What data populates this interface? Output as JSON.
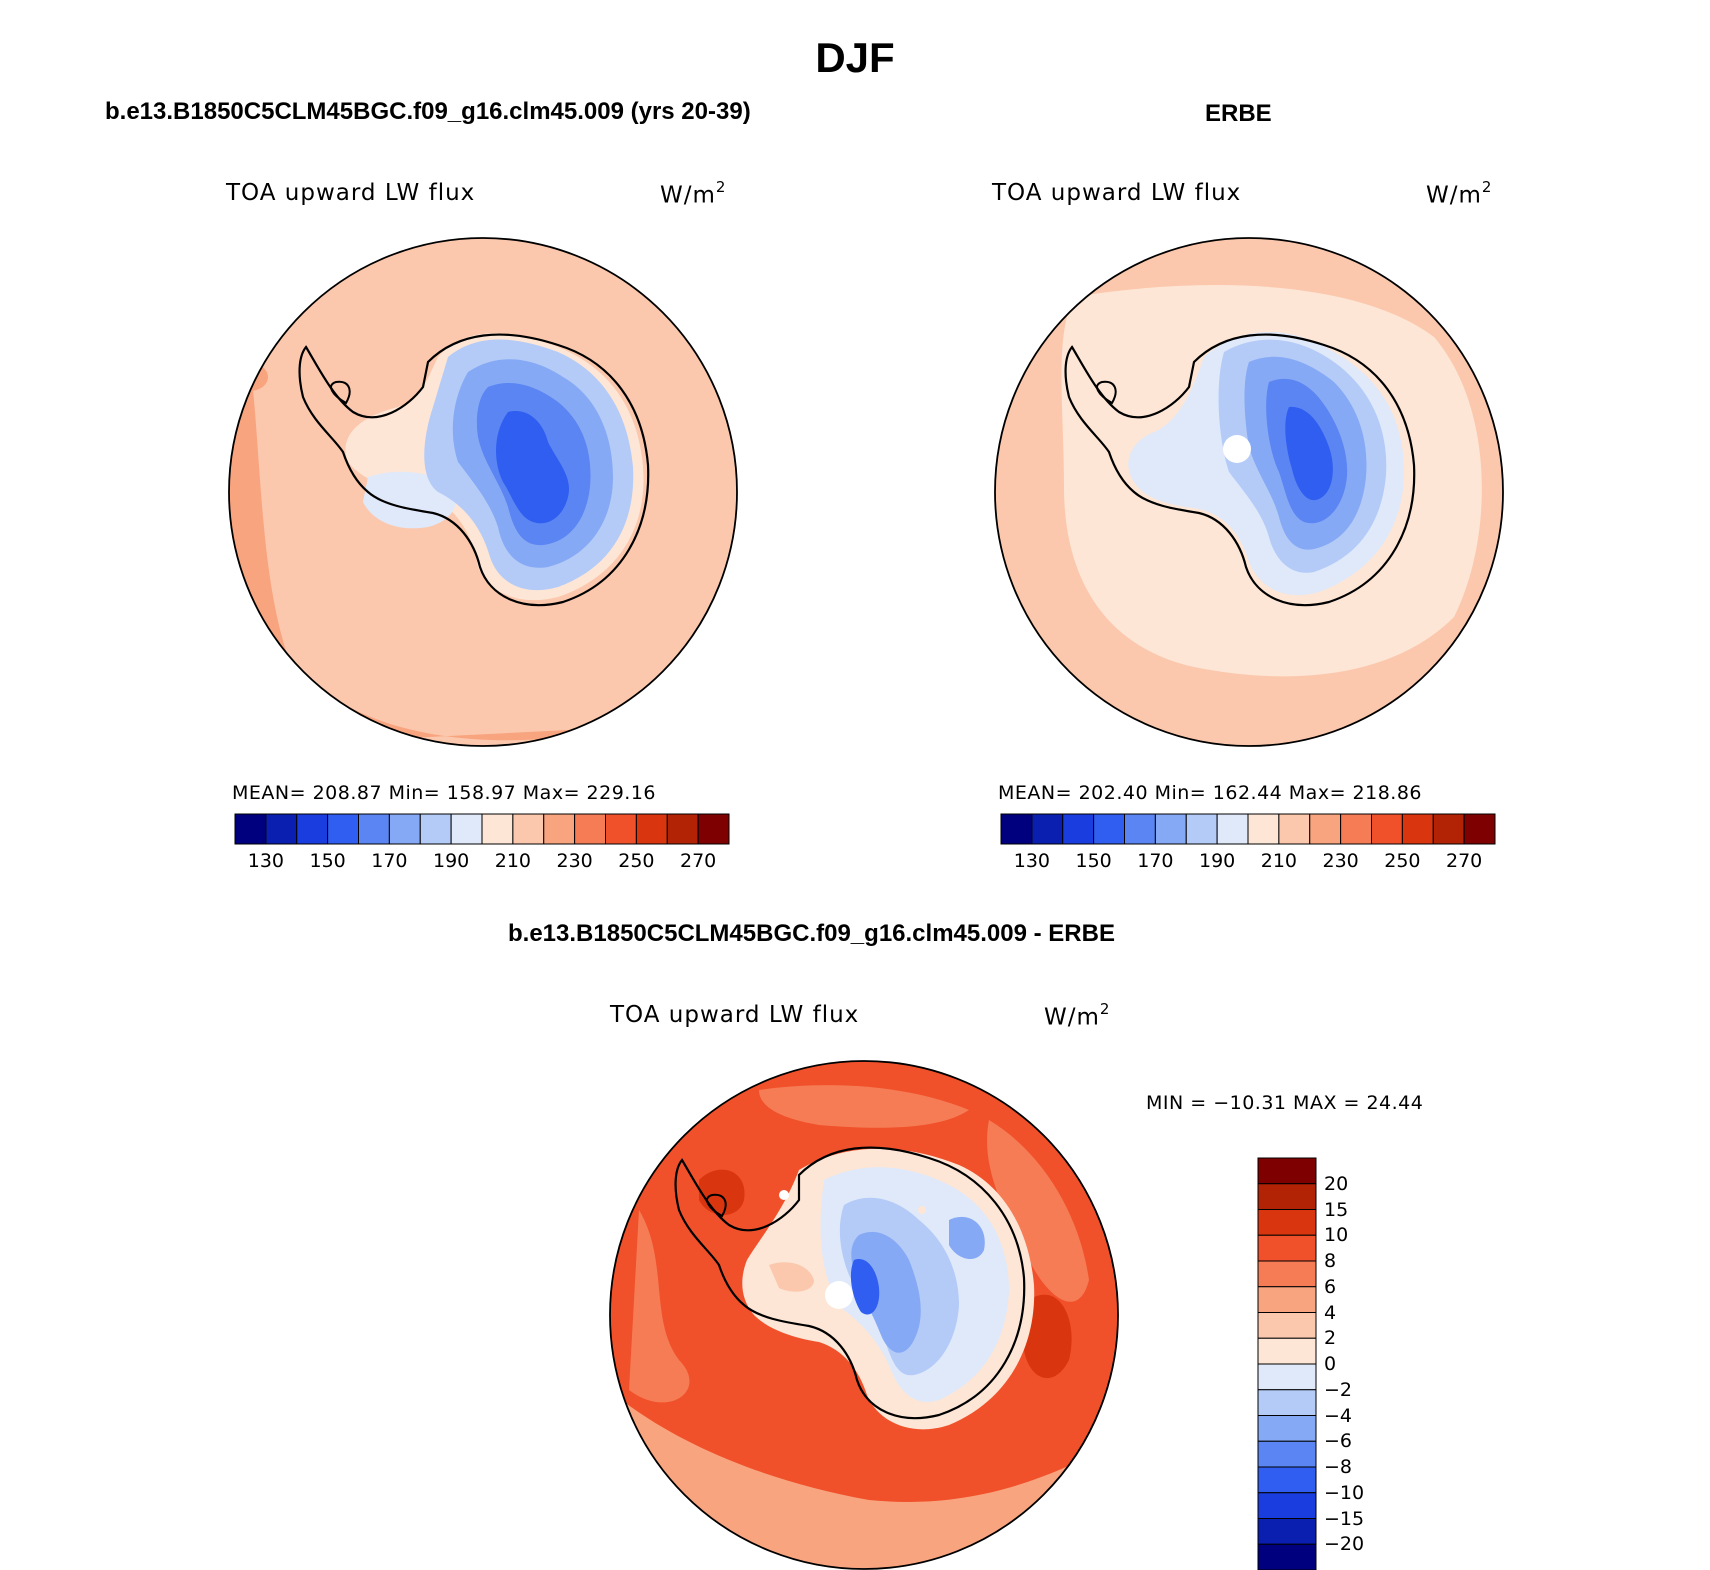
{
  "figure": {
    "title": "DJF"
  },
  "panels": {
    "model": {
      "title": "b.e13.B1850C5CLM45BGC.f09_g16.clm45.009 (yrs 20-39)",
      "variable": "TOA upward LW flux",
      "units_base": "W/m",
      "units_exp": "2",
      "stats": "MEAN= 208.87   Min= 158.97   Max= 229.16"
    },
    "obs": {
      "title": "ERBE",
      "variable": "TOA upward LW flux",
      "units_base": "W/m",
      "units_exp": "2",
      "stats": "MEAN= 202.40   Min= 162.44   Max= 218.86"
    },
    "diff": {
      "title": "b.e13.B1850C5CLM45BGC.f09_g16.clm45.009 - ERBE",
      "variable": "TOA upward LW flux",
      "units_base": "W/m",
      "units_exp": "2",
      "stats": "MIN = −10.31  MAX =   24.44"
    }
  },
  "colorbar_abs": {
    "labels": [
      "130",
      "150",
      "170",
      "190",
      "210",
      "230",
      "250",
      "270"
    ],
    "colors": [
      "#00007f",
      "#0a1fb0",
      "#1a3de0",
      "#2f5ef0",
      "#5a85f2",
      "#86a9f5",
      "#b4cbf8",
      "#dfe9fa",
      "#fde6d6",
      "#fbc8ad",
      "#f8a47f",
      "#f57c55",
      "#f0512b",
      "#d9360f",
      "#b22205",
      "#7f0000"
    ]
  },
  "colorbar_diff": {
    "labels": [
      "20",
      "15",
      "10",
      "8",
      "6",
      "4",
      "2",
      "0",
      "−2",
      "−4",
      "−6",
      "−8",
      "−10",
      "−15",
      "−20"
    ],
    "colors": [
      "#7f0000",
      "#b22205",
      "#d9360f",
      "#f0512b",
      "#f57c55",
      "#f8a47f",
      "#fbc8ad",
      "#fde6d6",
      "#dfe9fa",
      "#b4cbf8",
      "#86a9f5",
      "#5a85f2",
      "#2f5ef0",
      "#1a3de0",
      "#0a1fb0",
      "#00007f"
    ]
  }
}
